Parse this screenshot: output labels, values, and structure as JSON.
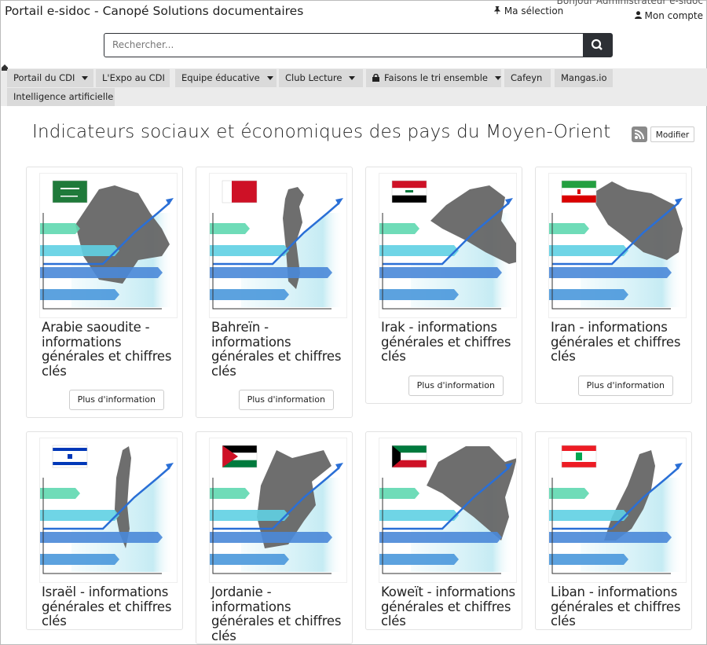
{
  "header": {
    "site_title": "Portail e-sidoc - Canopé Solutions documentaires",
    "selection": "Ma sélection",
    "greeting": "Bonjour Administrateur e-sidoc",
    "account": "Mon compte"
  },
  "search": {
    "placeholder": "Rechercher..."
  },
  "nav": {
    "items": [
      {
        "label": "Portail du CDI",
        "dropdown": true
      },
      {
        "label": "L'Expo au CDI",
        "dropdown": false
      },
      {
        "label": "Equipe éducative",
        "dropdown": true
      },
      {
        "label": "Club Lecture",
        "dropdown": true
      },
      {
        "label": "Faisons le tri ensemble",
        "dropdown": true,
        "locked": true
      },
      {
        "label": "Cafeyn",
        "dropdown": false
      },
      {
        "label": "Mangas.io",
        "dropdown": false
      },
      {
        "label": "Intelligence artificielle",
        "dropdown": false
      }
    ]
  },
  "page": {
    "title": "Indicateurs sociaux et économiques des pays du Moyen-Orient",
    "edit_button": "Modifier"
  },
  "cards": [
    {
      "title": "Arabie saoudite - informations générales et chiffres clés",
      "button": "Plus d'information"
    },
    {
      "title": "Bahreïn - informations générales et chiffres clés",
      "button": "Plus d'information"
    },
    {
      "title": "Irak - informations générales et chiffres clés",
      "button": "Plus d'information"
    },
    {
      "title": "Iran - informations générales et chiffres clés",
      "button": "Plus d'information"
    },
    {
      "title": "Israël - informations générales et chiffres clés"
    },
    {
      "title": "Jordanie - informations générales et chiffres clés"
    },
    {
      "title": "Koweït - informations générales et chiffres clés"
    },
    {
      "title": "Liban - informations générales et chiffres clés"
    }
  ]
}
